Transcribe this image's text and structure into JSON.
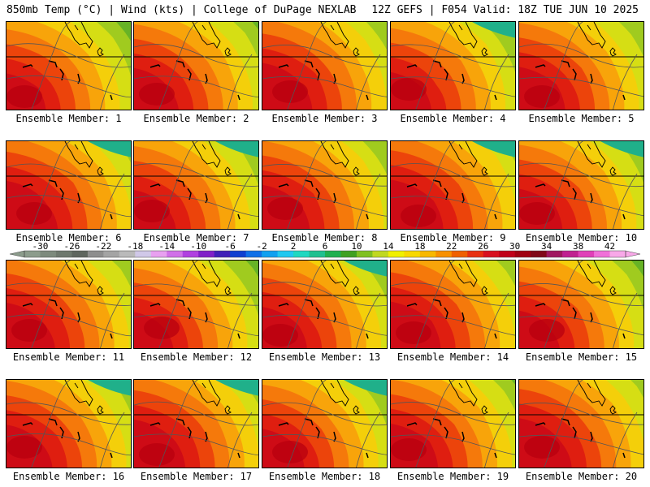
{
  "header": {
    "left_title": "850mb Temp (°C) | Wind (kts) | College of DuPage NEXLAB",
    "right_title": "12Z GEFS | F054 Valid: 18Z TUE JUN 10 2025"
  },
  "panels": [
    {
      "label": "Ensemble Member: 1"
    },
    {
      "label": "Ensemble Member: 2"
    },
    {
      "label": "Ensemble Member: 3"
    },
    {
      "label": "Ensemble Member: 4"
    },
    {
      "label": "Ensemble Member: 5"
    },
    {
      "label": "Ensemble Member: 6"
    },
    {
      "label": "Ensemble Member: 7"
    },
    {
      "label": "Ensemble Member: 8"
    },
    {
      "label": "Ensemble Member: 9"
    },
    {
      "label": "Ensemble Member: 10"
    },
    {
      "label": "Ensemble Member: 11"
    },
    {
      "label": "Ensemble Member: 12"
    },
    {
      "label": "Ensemble Member: 13"
    },
    {
      "label": "Ensemble Member: 14"
    },
    {
      "label": "Ensemble Member: 15"
    },
    {
      "label": "Ensemble Member: 16"
    },
    {
      "label": "Ensemble Member: 17"
    },
    {
      "label": "Ensemble Member: 18"
    },
    {
      "label": "Ensemble Member: 19"
    },
    {
      "label": "Ensemble Member: 20"
    }
  ],
  "colorbar": {
    "tick_labels": [
      "-30",
      "-26",
      "-22",
      "-18",
      "-14",
      "-10",
      "-6",
      "-2",
      "2",
      "6",
      "10",
      "14",
      "18",
      "22",
      "26",
      "30",
      "34",
      "38",
      "42"
    ],
    "colors": [
      "#8c9c8c",
      "#7d8a7d",
      "#6e786e",
      "#5f665f",
      "#8e8e8e",
      "#a4a4a4",
      "#bababa",
      "#d0c8e8",
      "#e8a0f0",
      "#d070e8",
      "#b040e0",
      "#8020c8",
      "#4020b8",
      "#1040d0",
      "#1070e8",
      "#10a0f0",
      "#20c8f0",
      "#20d8c0",
      "#20c090",
      "#20b050",
      "#40a020",
      "#80c020",
      "#c0d820",
      "#f0f000",
      "#f8d800",
      "#f8b800",
      "#f89000",
      "#f06000",
      "#e83010",
      "#d81020",
      "#c00018",
      "#a00010",
      "#800818",
      "#a01860",
      "#c02090",
      "#e040b8",
      "#f070d8",
      "#f8a8e8"
    ],
    "value_min": -32,
    "value_max": 44
  }
}
